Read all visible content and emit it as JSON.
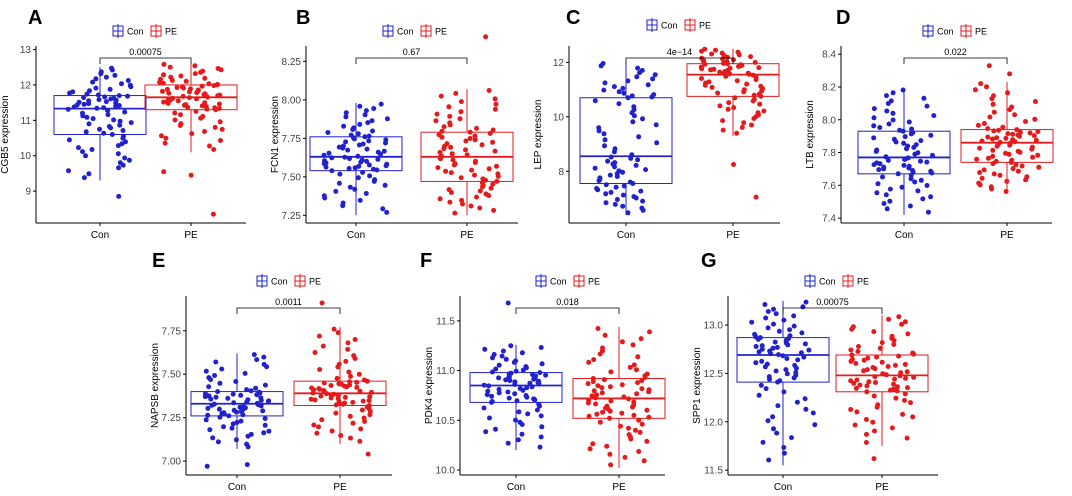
{
  "legend": {
    "labels": [
      "Con",
      "PE"
    ],
    "colors": {
      "Con": "#2222cc",
      "PE": "#e41a1c"
    }
  },
  "chart_data": [
    {
      "type": "box",
      "panel": "A",
      "ylabel": "CGB5 expression",
      "categories": [
        "Con",
        "PE"
      ],
      "ylim": [
        8.1,
        13.1
      ],
      "yticks": [
        {
          "v": 9,
          "t": "9"
        },
        {
          "v": 10,
          "t": "10"
        },
        {
          "v": 11,
          "t": "11"
        },
        {
          "v": 12,
          "t": "12"
        },
        {
          "v": 13,
          "t": "13"
        }
      ],
      "pvalue": "0.00075",
      "boxes": [
        {
          "group": "Con",
          "q1": 10.6,
          "median": 11.33,
          "q3": 11.7,
          "whisker_low": 9.3,
          "whisker_high": 12.5
        },
        {
          "group": "PE",
          "q1": 11.3,
          "median": 11.65,
          "q3": 12.0,
          "whisker_low": 10.1,
          "whisker_high": 12.6
        }
      ],
      "outliers": {
        "Con": [
          8.85
        ],
        "PE": [
          9.55,
          9.45,
          8.35
        ]
      }
    },
    {
      "type": "box",
      "panel": "B",
      "ylabel": "FCN1 expression",
      "categories": [
        "Con",
        "PE"
      ],
      "ylim": [
        7.2,
        8.35
      ],
      "yticks": [
        {
          "v": 7.25,
          "t": "7.25"
        },
        {
          "v": 7.5,
          "t": "7.50"
        },
        {
          "v": 7.75,
          "t": "7.75"
        },
        {
          "v": 8.0,
          "t": "8.00"
        },
        {
          "v": 8.25,
          "t": "8.25"
        }
      ],
      "pvalue": "0.67",
      "boxes": [
        {
          "group": "Con",
          "q1": 7.54,
          "median": 7.63,
          "q3": 7.76,
          "whisker_low": 7.25,
          "whisker_high": 7.98
        },
        {
          "group": "PE",
          "q1": 7.47,
          "median": 7.63,
          "q3": 7.79,
          "whisker_low": 7.25,
          "whisker_high": 8.07
        }
      ],
      "outliers": {
        "Con": [],
        "PE": [
          8.41
        ]
      }
    },
    {
      "type": "box",
      "panel": "C",
      "ylabel": "LEP expression",
      "categories": [
        "Con",
        "PE"
      ],
      "ylim": [
        6.1,
        12.6
      ],
      "yticks": [
        {
          "v": 8,
          "t": "8"
        },
        {
          "v": 10,
          "t": "10"
        },
        {
          "v": 12,
          "t": "12"
        }
      ],
      "pvalue": "4e−14",
      "boxes": [
        {
          "group": "Con",
          "q1": 7.55,
          "median": 8.55,
          "q3": 10.7,
          "whisker_low": 6.4,
          "whisker_high": 12.0
        },
        {
          "group": "PE",
          "q1": 10.75,
          "median": 11.55,
          "q3": 11.95,
          "whisker_low": 9.3,
          "whisker_high": 12.5
        }
      ],
      "outliers": {
        "Con": [],
        "PE": [
          8.25,
          7.05
        ]
      }
    },
    {
      "type": "box",
      "panel": "D",
      "ylabel": "LTB expression",
      "categories": [
        "Con",
        "PE"
      ],
      "ylim": [
        7.37,
        8.45
      ],
      "yticks": [
        {
          "v": 7.4,
          "t": "7.4"
        },
        {
          "v": 7.6,
          "t": "7.6"
        },
        {
          "v": 7.8,
          "t": "7.8"
        },
        {
          "v": 8.0,
          "t": "8.0"
        },
        {
          "v": 8.2,
          "t": "8.2"
        },
        {
          "v": 8.4,
          "t": "8.4"
        }
      ],
      "pvalue": "0.022",
      "boxes": [
        {
          "group": "Con",
          "q1": 7.67,
          "median": 7.77,
          "q3": 7.93,
          "whisker_low": 7.42,
          "whisker_high": 8.19
        },
        {
          "group": "PE",
          "q1": 7.74,
          "median": 7.86,
          "q3": 7.94,
          "whisker_low": 7.55,
          "whisker_high": 8.23
        }
      ],
      "outliers": {
        "Con": [],
        "PE": [
          8.33,
          8.28
        ]
      }
    },
    {
      "type": "box",
      "panel": "E",
      "ylabel": "NAPSB expression",
      "categories": [
        "Con",
        "PE"
      ],
      "ylim": [
        6.92,
        7.95
      ],
      "yticks": [
        {
          "v": 7.0,
          "t": "7.00"
        },
        {
          "v": 7.25,
          "t": "7.25"
        },
        {
          "v": 7.5,
          "t": "7.50"
        },
        {
          "v": 7.75,
          "t": "7.75"
        }
      ],
      "pvalue": "0.0011",
      "boxes": [
        {
          "group": "Con",
          "q1": 7.26,
          "median": 7.33,
          "q3": 7.4,
          "whisker_low": 7.07,
          "whisker_high": 7.62
        },
        {
          "group": "PE",
          "q1": 7.32,
          "median": 7.39,
          "q3": 7.46,
          "whisker_low": 7.1,
          "whisker_high": 7.77
        }
      ],
      "outliers": {
        "Con": [
          6.98,
          6.97
        ],
        "PE": [
          7.04,
          7.91
        ]
      }
    },
    {
      "type": "box",
      "panel": "F",
      "ylabel": "PDK4 expression",
      "categories": [
        "Con",
        "PE"
      ],
      "ylim": [
        9.95,
        11.75
      ],
      "yticks": [
        {
          "v": 10.0,
          "t": "10.0"
        },
        {
          "v": 10.5,
          "t": "10.5"
        },
        {
          "v": 11.0,
          "t": "11.0"
        },
        {
          "v": 11.5,
          "t": "11.5"
        }
      ],
      "pvalue": "0.018",
      "boxes": [
        {
          "group": "Con",
          "q1": 10.68,
          "median": 10.85,
          "q3": 10.98,
          "whisker_low": 10.2,
          "whisker_high": 11.26
        },
        {
          "group": "PE",
          "q1": 10.52,
          "median": 10.72,
          "q3": 10.92,
          "whisker_low": 10.02,
          "whisker_high": 11.44
        }
      ],
      "outliers": {
        "Con": [
          11.68
        ],
        "PE": []
      }
    },
    {
      "type": "box",
      "panel": "G",
      "ylabel": "SPP1 expression",
      "categories": [
        "Con",
        "PE"
      ],
      "ylim": [
        11.45,
        13.3
      ],
      "yticks": [
        {
          "v": 11.5,
          "t": "11.5"
        },
        {
          "v": 12.0,
          "t": "12.0"
        },
        {
          "v": 12.5,
          "t": "12.5"
        },
        {
          "v": 13.0,
          "t": "13.0"
        }
      ],
      "pvalue": "0.00075",
      "boxes": [
        {
          "group": "Con",
          "q1": 12.41,
          "median": 12.69,
          "q3": 12.87,
          "whisker_low": 11.55,
          "whisker_high": 13.25
        },
        {
          "group": "PE",
          "q1": 12.31,
          "median": 12.48,
          "q3": 12.69,
          "whisker_low": 11.75,
          "whisker_high": 13.1
        }
      ],
      "outliers": {
        "Con": [],
        "PE": [
          11.62
        ]
      }
    }
  ]
}
